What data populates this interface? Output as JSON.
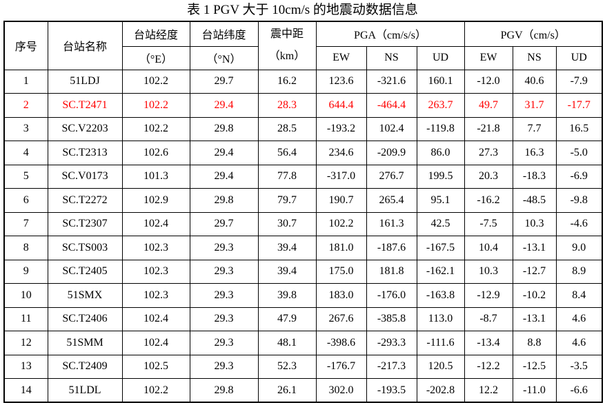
{
  "title": "表 1 PGV 大于 10cm/s 的地震动数据信息",
  "colors": {
    "highlight": "#ff0000",
    "text": "#000000",
    "border": "#000000",
    "background": "#ffffff"
  },
  "table": {
    "headers": {
      "seq": "序号",
      "station": "台站名称",
      "lon_top": "台站经度",
      "lon_unit": "（°E）",
      "lat_top": "台站纬度",
      "lat_unit": "（°N）",
      "dist_top": "震中距",
      "dist_unit": "（km）",
      "pga_group": "PGA（cm/s/s）",
      "pgv_group": "PGV（cm/s）",
      "ew": "EW",
      "ns": "NS",
      "ud": "UD"
    },
    "rows": [
      {
        "highlight": false,
        "cells": [
          "1",
          "51LDJ",
          "102.2",
          "29.7",
          "16.2",
          "123.6",
          "-321.6",
          "160.1",
          "-12.0",
          "40.6",
          "-7.9"
        ]
      },
      {
        "highlight": true,
        "cells": [
          "2",
          "SC.T2471",
          "102.2",
          "29.4",
          "28.3",
          "644.4",
          "-464.4",
          "263.7",
          "49.7",
          "31.7",
          "-17.7"
        ]
      },
      {
        "highlight": false,
        "cells": [
          "3",
          "SC.V2203",
          "102.2",
          "29.8",
          "28.5",
          "-193.2",
          "102.4",
          "-119.8",
          "-21.8",
          "7.7",
          "16.5"
        ]
      },
      {
        "highlight": false,
        "cells": [
          "4",
          "SC.T2313",
          "102.6",
          "29.4",
          "56.4",
          "234.6",
          "-209.9",
          "86.0",
          "27.3",
          "16.3",
          "-5.0"
        ]
      },
      {
        "highlight": false,
        "cells": [
          "5",
          "SC.V0173",
          "101.3",
          "29.4",
          "77.8",
          "-317.0",
          "276.7",
          "199.5",
          "20.3",
          "-18.3",
          "-6.9"
        ]
      },
      {
        "highlight": false,
        "cells": [
          "6",
          "SC.T2272",
          "102.9",
          "29.8",
          "79.7",
          "190.7",
          "265.4",
          "95.1",
          "-16.2",
          "-48.5",
          "-9.8"
        ]
      },
      {
        "highlight": false,
        "cells": [
          "7",
          "SC.T2307",
          "102.4",
          "29.7",
          "30.7",
          "102.2",
          "161.3",
          "42.5",
          "-7.5",
          "10.3",
          "-4.6"
        ]
      },
      {
        "highlight": false,
        "cells": [
          "8",
          "SC.TS003",
          "102.3",
          "29.3",
          "39.4",
          "181.0",
          "-187.6",
          "-167.5",
          "10.4",
          "-13.1",
          "9.0"
        ]
      },
      {
        "highlight": false,
        "cells": [
          "9",
          "SC.T2405",
          "102.3",
          "29.3",
          "39.4",
          "175.0",
          "181.8",
          "-162.1",
          "10.3",
          "-12.7",
          "8.9"
        ]
      },
      {
        "highlight": false,
        "cells": [
          "10",
          "51SMX",
          "102.3",
          "29.3",
          "39.8",
          "183.0",
          "-176.0",
          "-163.8",
          "-12.9",
          "-10.2",
          "8.4"
        ]
      },
      {
        "highlight": false,
        "cells": [
          "11",
          "SC.T2406",
          "102.4",
          "29.3",
          "47.9",
          "267.6",
          "-385.8",
          "113.0",
          "-8.7",
          "-13.1",
          "4.6"
        ]
      },
      {
        "highlight": false,
        "cells": [
          "12",
          "51SMM",
          "102.4",
          "29.3",
          "48.1",
          "-398.6",
          "-293.3",
          "-111.6",
          "-13.4",
          "8.8",
          "4.6"
        ]
      },
      {
        "highlight": false,
        "cells": [
          "13",
          "SC.T2409",
          "102.5",
          "29.3",
          "52.3",
          "-176.7",
          "-217.3",
          "120.5",
          "-12.2",
          "-12.5",
          "-3.5"
        ]
      },
      {
        "highlight": false,
        "cells": [
          "14",
          "51LDL",
          "102.2",
          "29.8",
          "26.1",
          "302.0",
          "-193.5",
          "-202.8",
          "12.2",
          "-11.0",
          "-6.6"
        ]
      }
    ]
  }
}
